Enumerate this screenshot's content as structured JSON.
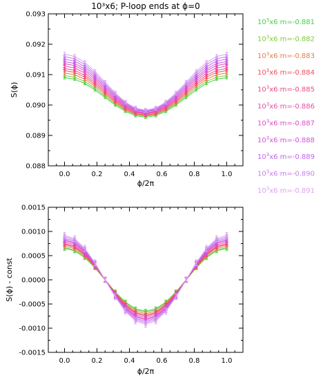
{
  "figure": {
    "title": "10³x6; P-loop ends at ϕ=0"
  },
  "legend": {
    "entries": [
      {
        "base": "10",
        "exp": "3",
        "rest": "x6 m=-0.881",
        "color": "#44d044"
      },
      {
        "base": "10",
        "exp": "3",
        "rest": "x6 m=-0.882",
        "color": "#7acc3a"
      },
      {
        "base": "10",
        "exp": "3",
        "rest": "x6 m=-0.883",
        "color": "#e87a4a"
      },
      {
        "base": "10",
        "exp": "3",
        "rest": "x6 m=-0.884",
        "color": "#f24c5c"
      },
      {
        "base": "10",
        "exp": "3",
        "rest": "x6 m=-0.885",
        "color": "#ee4a86"
      },
      {
        "base": "10",
        "exp": "3",
        "rest": "x6 m=-0.886",
        "color": "#e84ca6"
      },
      {
        "base": "10",
        "exp": "3",
        "rest": "x6 m=-0.887",
        "color": "#dc4cc6"
      },
      {
        "base": "10",
        "exp": "3",
        "rest": "x6 m=-0.888",
        "color": "#cf54dc"
      },
      {
        "base": "10",
        "exp": "3",
        "rest": "x6 m=-0.889",
        "color": "#bf62ea"
      },
      {
        "base": "10",
        "exp": "3",
        "rest": "x6 m=-0.890",
        "color": "#c67ef0"
      },
      {
        "base": "10",
        "exp": "3",
        "rest": "x6 m=-0.891",
        "color": "#dca0f4"
      }
    ]
  },
  "chart_data": [
    {
      "type": "line",
      "title": "10³x6; P-loop ends at ϕ=0",
      "xlabel": "ϕ/2π",
      "ylabel": "S(ϕ)",
      "xlim": [
        -0.1,
        1.1
      ],
      "ylim": [
        0.088,
        0.093
      ],
      "xticks": [
        "0.0",
        "0.2",
        "0.4",
        "0.6",
        "0.8",
        "1.0"
      ],
      "yticks": [
        "0.088",
        "0.089",
        "0.090",
        "0.091",
        "0.092",
        "0.093"
      ],
      "grid": false,
      "legend_position": "right",
      "x": [
        0.0,
        0.0625,
        0.125,
        0.1875,
        0.25,
        0.3125,
        0.375,
        0.4375,
        0.5,
        0.5625,
        0.625,
        0.6875,
        0.75,
        0.8125,
        0.875,
        0.9375,
        1.0
      ],
      "series": [
        {
          "name": "10³x6 m=-0.881",
          "center": 0.09025,
          "amplitude": 0.00065,
          "error": 4e-05
        },
        {
          "name": "10³x6 m=-0.882",
          "center": 0.0903,
          "amplitude": 0.00067,
          "error": 4e-05
        },
        {
          "name": "10³x6 m=-0.883",
          "center": 0.09035,
          "amplitude": 0.0007,
          "error": 4e-05
        },
        {
          "name": "10³x6 m=-0.884",
          "center": 0.0904,
          "amplitude": 0.00073,
          "error": 4e-05
        },
        {
          "name": "10³x6 m=-0.885",
          "center": 0.09045,
          "amplitude": 0.00075,
          "error": 4e-05
        },
        {
          "name": "10³x6 m=-0.886",
          "center": 0.0905,
          "amplitude": 0.00078,
          "error": 5e-05
        },
        {
          "name": "10³x6 m=-0.887",
          "center": 0.09055,
          "amplitude": 0.00081,
          "error": 5e-05
        },
        {
          "name": "10³x6 m=-0.888",
          "center": 0.0906,
          "amplitude": 0.00083,
          "error": 5e-05
        },
        {
          "name": "10³x6 m=-0.889",
          "center": 0.09065,
          "amplitude": 0.00086,
          "error": 5e-05
        },
        {
          "name": "10³x6 m=-0.890",
          "center": 0.0907,
          "amplitude": 0.00089,
          "error": 5e-05
        },
        {
          "name": "10³x6 m=-0.891",
          "center": 0.09075,
          "amplitude": 0.00092,
          "error": 6e-05
        }
      ]
    },
    {
      "type": "line",
      "title": "",
      "xlabel": "ϕ/2π",
      "ylabel": "S(ϕ) - const",
      "xlim": [
        -0.1,
        1.1
      ],
      "ylim": [
        -0.0015,
        0.0015
      ],
      "xticks": [
        "0.0",
        "0.2",
        "0.4",
        "0.6",
        "0.8",
        "1.0"
      ],
      "yticks": [
        "-0.0015",
        "-0.0010",
        "-0.0005",
        "0.0000",
        "0.0005",
        "0.0010",
        "0.0015"
      ],
      "grid": false,
      "x": [
        0.0,
        0.0625,
        0.125,
        0.1875,
        0.25,
        0.3125,
        0.375,
        0.4375,
        0.5,
        0.5625,
        0.625,
        0.6875,
        0.75,
        0.8125,
        0.875,
        0.9375,
        1.0
      ],
      "series": [
        {
          "name": "10³x6 m=-0.881",
          "amplitude": 0.00065,
          "error": 4e-05
        },
        {
          "name": "10³x6 m=-0.882",
          "amplitude": 0.00067,
          "error": 4e-05
        },
        {
          "name": "10³x6 m=-0.883",
          "amplitude": 0.0007,
          "error": 4e-05
        },
        {
          "name": "10³x6 m=-0.884",
          "amplitude": 0.00073,
          "error": 4e-05
        },
        {
          "name": "10³x6 m=-0.885",
          "amplitude": 0.00075,
          "error": 4e-05
        },
        {
          "name": "10³x6 m=-0.886",
          "amplitude": 0.00078,
          "error": 5e-05
        },
        {
          "name": "10³x6 m=-0.887",
          "amplitude": 0.00081,
          "error": 5e-05
        },
        {
          "name": "10³x6 m=-0.888",
          "amplitude": 0.00083,
          "error": 5e-05
        },
        {
          "name": "10³x6 m=-0.889",
          "amplitude": 0.00086,
          "error": 5e-05
        },
        {
          "name": "10³x6 m=-0.890",
          "amplitude": 0.00089,
          "error": 5e-05
        },
        {
          "name": "10³x6 m=-0.891",
          "amplitude": 0.00092,
          "error": 6e-05
        }
      ]
    }
  ]
}
